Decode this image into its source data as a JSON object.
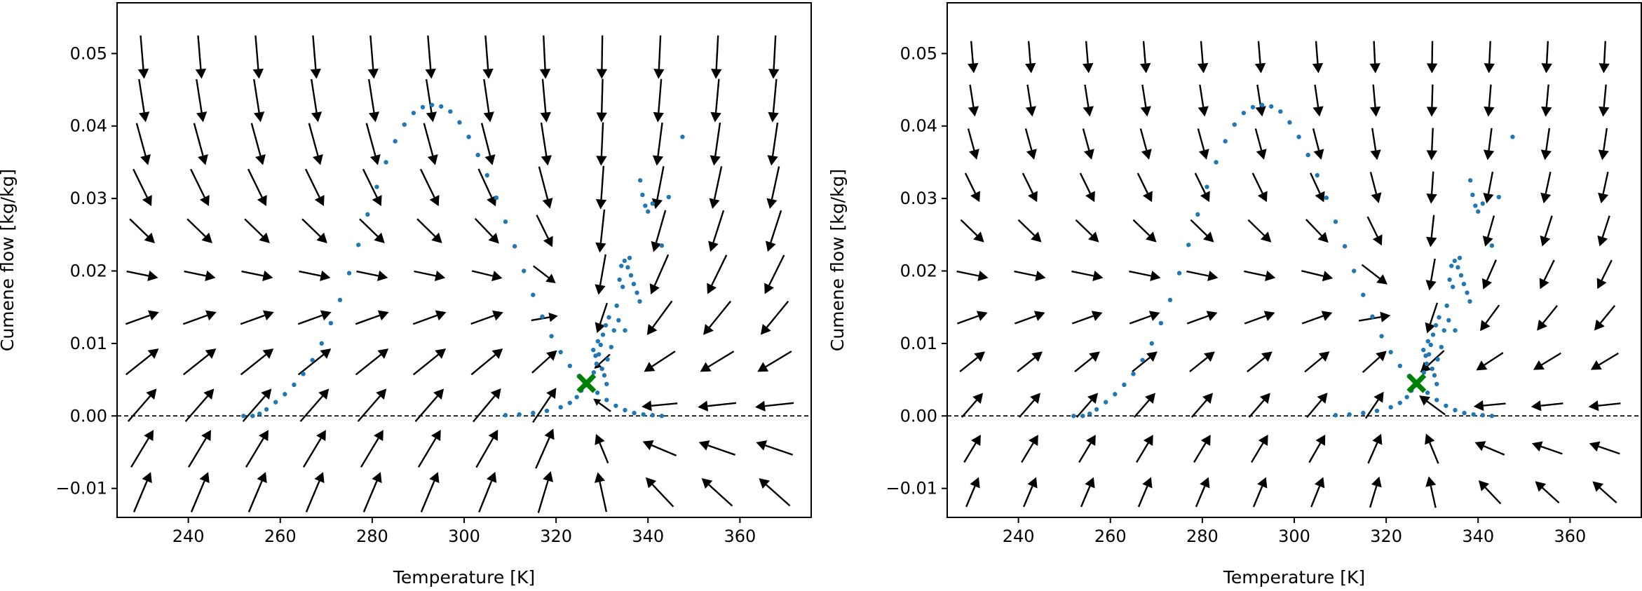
{
  "chart_data": [
    {
      "type": "quiver",
      "field": "abs",
      "title": "",
      "xlabel": "Temperature [K]",
      "ylabel": "Cumene flow [kg/kg]",
      "xlim": [
        224.5,
        375.5
      ],
      "ylim": [
        -0.014,
        0.057
      ],
      "xticks": [
        240,
        260,
        280,
        300,
        320,
        340,
        360
      ],
      "yticks": [
        -0.01,
        0.0,
        0.01,
        0.02,
        0.03,
        0.04,
        0.05
      ],
      "ytick_labels": [
        "−0.01",
        "0.00",
        "0.01",
        "0.02",
        "0.03",
        "0.04",
        "0.05"
      ],
      "reference_line": {
        "y": 0.0,
        "style": "dashed",
        "color": "#000000"
      },
      "equilibrium_point": {
        "x": 326.6,
        "y": 0.0045,
        "marker": "X",
        "color": "#008000"
      },
      "trajectory_color": "#1f77b4",
      "arrow_color": "#000000"
    },
    {
      "type": "quiver",
      "field": "dir",
      "title": "",
      "xlabel": "Temperature [K]",
      "ylabel": "Cumene flow [kg/kg]",
      "xlim": [
        224.5,
        375.5
      ],
      "ylim": [
        -0.014,
        0.057
      ],
      "xticks": [
        240,
        260,
        280,
        300,
        320,
        340,
        360
      ],
      "yticks": [
        -0.01,
        0.0,
        0.01,
        0.02,
        0.03,
        0.04,
        0.05
      ],
      "ytick_labels": [
        "−0.01",
        "0.00",
        "0.01",
        "0.02",
        "0.03",
        "0.04",
        "0.05"
      ],
      "reference_line": {
        "y": 0.0,
        "style": "dashed",
        "color": "#000000"
      },
      "equilibrium_point": {
        "x": 326.6,
        "y": 0.0045,
        "marker": "X",
        "color": "#008000"
      },
      "trajectory_color": "#1f77b4",
      "arrow_color": "#000000"
    }
  ],
  "field_model": {
    "grid_x": [
      230,
      242.5,
      255,
      267.5,
      280,
      292.5,
      305,
      317.5,
      330,
      342.5,
      355,
      367.5
    ],
    "grid_y": [
      -0.0105,
      -0.0045,
      0.0015,
      0.0075,
      0.0135,
      0.0195,
      0.0255,
      0.0315,
      0.0375,
      0.0435,
      0.0495
    ],
    "equilibrium_T": 326.6,
    "T_scale": 12,
    "nullcline_plateau": 0.0175,
    "nullcline_T0": 325
  },
  "trajectory": {
    "main_curve": [
      [
        252.0,
        0.0
      ],
      [
        254.0,
        0.0
      ],
      [
        255.5,
        0.0003
      ],
      [
        257,
        0.0009
      ],
      [
        259,
        0.0019
      ],
      [
        261,
        0.003
      ],
      [
        263,
        0.0043
      ],
      [
        265,
        0.0058
      ],
      [
        267,
        0.0077
      ],
      [
        269,
        0.01
      ],
      [
        271,
        0.0128
      ],
      [
        273,
        0.016
      ],
      [
        275,
        0.0197
      ],
      [
        277,
        0.0236
      ],
      [
        279,
        0.0278
      ],
      [
        281,
        0.0316
      ],
      [
        283,
        0.035
      ],
      [
        285,
        0.0379
      ],
      [
        287,
        0.0402
      ],
      [
        289,
        0.0418
      ],
      [
        291,
        0.0426
      ],
      [
        293,
        0.0429
      ],
      [
        295,
        0.0427
      ],
      [
        297,
        0.042
      ],
      [
        299,
        0.0405
      ],
      [
        301,
        0.0385
      ],
      [
        303,
        0.036
      ],
      [
        305,
        0.0332
      ],
      [
        307,
        0.0301
      ],
      [
        309,
        0.0268
      ],
      [
        311,
        0.0234
      ],
      [
        313,
        0.02
      ],
      [
        315,
        0.0167
      ],
      [
        317,
        0.0137
      ],
      [
        319,
        0.011
      ],
      [
        321,
        0.0088
      ],
      [
        323,
        0.0069
      ],
      [
        325,
        0.0055
      ],
      [
        327,
        0.0043
      ],
      [
        329,
        0.0032
      ],
      [
        331,
        0.0022
      ],
      [
        333,
        0.0014
      ],
      [
        335,
        0.0008
      ],
      [
        337,
        0.0004
      ],
      [
        339,
        0.0002
      ],
      [
        341,
        0.0001
      ],
      [
        343,
        0.0
      ]
    ],
    "lower_branch": [
      [
        309,
        0.0001
      ],
      [
        312,
        0.0002
      ],
      [
        315,
        0.0004
      ],
      [
        318,
        0.0007
      ],
      [
        321,
        0.0012
      ],
      [
        323,
        0.0018
      ],
      [
        324.5,
        0.0026
      ],
      [
        325.5,
        0.0035
      ],
      [
        326.3,
        0.0042
      ]
    ],
    "right_spray": [
      [
        327.5,
        0.005
      ],
      [
        328.2,
        0.006
      ],
      [
        328.8,
        0.0072
      ],
      [
        329.3,
        0.0085
      ],
      [
        329.7,
        0.0098
      ],
      [
        330.2,
        0.0112
      ],
      [
        330.8,
        0.0125
      ],
      [
        331.5,
        0.0136
      ],
      [
        328.6,
        0.0083
      ],
      [
        330.0,
        0.0065
      ],
      [
        331.2,
        0.0078
      ],
      [
        332.0,
        0.0095
      ],
      [
        332.6,
        0.0118
      ],
      [
        333.2,
        0.0152
      ],
      [
        333.8,
        0.0188
      ],
      [
        334.2,
        0.0207
      ],
      [
        334.9,
        0.0214
      ],
      [
        335.6,
        0.0205
      ],
      [
        336.3,
        0.0194
      ],
      [
        336.9,
        0.0182
      ],
      [
        337.6,
        0.017
      ],
      [
        338.2,
        0.0158
      ],
      [
        333.6,
        0.0132
      ],
      [
        335.0,
        0.0118
      ],
      [
        329.1,
        0.0103
      ],
      [
        328.1,
        0.0091
      ],
      [
        331.0,
        0.0044
      ],
      [
        330.5,
        0.0056
      ],
      [
        336.0,
        0.0218
      ],
      [
        334.5,
        0.0178
      ]
    ],
    "far_right": [
      [
        338.3,
        0.0325
      ],
      [
        338.8,
        0.0305
      ],
      [
        339.4,
        0.029
      ],
      [
        340.0,
        0.0282
      ],
      [
        341.0,
        0.0293
      ],
      [
        344.5,
        0.0302
      ],
      [
        343.0,
        0.0235
      ],
      [
        347.5,
        0.0385
      ]
    ]
  }
}
